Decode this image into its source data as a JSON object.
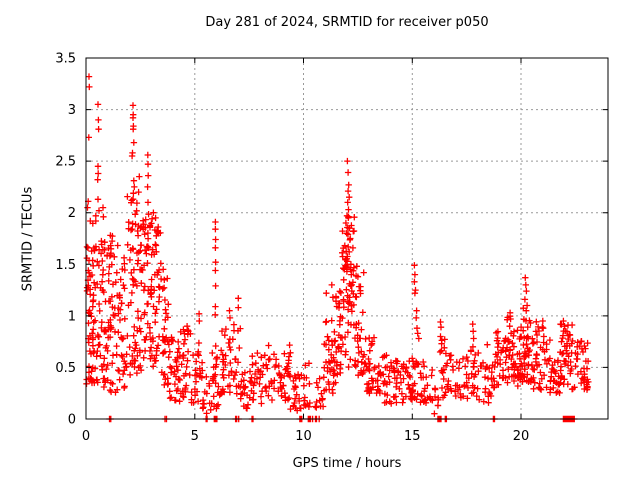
{
  "chart_data": {
    "type": "scatter",
    "title": "Day 281 of 2024, SRMTID for receiver p050",
    "xlabel": "GPS time / hours",
    "ylabel": "SRMTID / TECUs",
    "xlim": [
      0,
      24
    ],
    "ylim": [
      0,
      3.5
    ],
    "xticks": [
      0,
      5,
      10,
      15,
      20
    ],
    "yticks": [
      0,
      0.5,
      1,
      1.5,
      2,
      2.5,
      3,
      3.5
    ],
    "grid": true,
    "legend": "none",
    "marker": {
      "shape": "plus",
      "color": "#ff0000",
      "size": 7
    },
    "axis_color": "#000000",
    "grid_color": "#999999",
    "series": [
      {
        "name": "SRMTID",
        "feature_points": [
          [
            0.14,
            3.32
          ],
          [
            0.15,
            3.22
          ],
          [
            0.13,
            2.73
          ],
          [
            0.1,
            2.11
          ],
          [
            0.07,
            2.05
          ],
          [
            0.2,
            1.92
          ],
          [
            0.55,
            3.05
          ],
          [
            0.57,
            2.9
          ],
          [
            0.58,
            2.81
          ],
          [
            0.55,
            2.45
          ],
          [
            0.56,
            2.38
          ],
          [
            0.54,
            2.32
          ],
          [
            0.55,
            2.13
          ],
          [
            0.6,
            2.02
          ],
          [
            0.45,
            1.97
          ],
          [
            0.78,
            2.05
          ],
          [
            0.8,
            1.96
          ],
          [
            1.12,
            1.78
          ],
          [
            1.15,
            1.65
          ],
          [
            1.1,
            1.58
          ],
          [
            2.16,
            3.04
          ],
          [
            2.17,
            2.95
          ],
          [
            2.16,
            2.92
          ],
          [
            2.18,
            2.84
          ],
          [
            2.17,
            2.81
          ],
          [
            2.2,
            2.68
          ],
          [
            2.14,
            2.58
          ],
          [
            2.12,
            2.55
          ],
          [
            2.2,
            2.31
          ],
          [
            2.22,
            2.25
          ],
          [
            2.18,
            2.19
          ],
          [
            2.1,
            2.12
          ],
          [
            2.45,
            2.35
          ],
          [
            2.42,
            2.2
          ],
          [
            2.84,
            2.56
          ],
          [
            2.85,
            2.47
          ],
          [
            2.86,
            2.36
          ],
          [
            2.83,
            2.25
          ],
          [
            2.85,
            2.1
          ],
          [
            3.1,
            2.0
          ],
          [
            3.2,
            1.95
          ],
          [
            3.55,
            1.45
          ],
          [
            3.6,
            1.35
          ],
          [
            4.65,
            0.9
          ],
          [
            4.68,
            0.85
          ],
          [
            5.2,
            1.02
          ],
          [
            5.21,
            0.95
          ],
          [
            5.95,
            1.91
          ],
          [
            5.95,
            1.84
          ],
          [
            5.96,
            1.74
          ],
          [
            5.95,
            1.66
          ],
          [
            5.96,
            1.52
          ],
          [
            5.95,
            1.44
          ],
          [
            5.96,
            1.29
          ],
          [
            5.95,
            1.09
          ],
          [
            5.94,
            1.01
          ],
          [
            6.6,
            1.05
          ],
          [
            6.62,
            0.98
          ],
          [
            7.0,
            1.17
          ],
          [
            7.0,
            1.08
          ],
          [
            11.05,
            1.22
          ],
          [
            11.3,
            1.3
          ],
          [
            11.35,
            1.18
          ],
          [
            12.02,
            2.5
          ],
          [
            12.05,
            2.39
          ],
          [
            12.08,
            2.27
          ],
          [
            12.05,
            2.21
          ],
          [
            12.1,
            2.15
          ],
          [
            12.03,
            2.1
          ],
          [
            12.07,
            2.03
          ],
          [
            12.0,
            1.97
          ],
          [
            11.95,
            1.9
          ],
          [
            12.12,
            1.85
          ],
          [
            11.98,
            1.8
          ],
          [
            12.15,
            1.75
          ],
          [
            11.9,
            1.68
          ],
          [
            12.1,
            1.62
          ],
          [
            11.93,
            1.55
          ],
          [
            12.18,
            1.5
          ],
          [
            11.88,
            1.45
          ],
          [
            12.2,
            1.4
          ],
          [
            11.85,
            1.35
          ],
          [
            12.22,
            1.3
          ],
          [
            12.45,
            1.48
          ],
          [
            12.5,
            1.38
          ],
          [
            15.1,
            1.49
          ],
          [
            15.12,
            1.4
          ],
          [
            15.1,
            1.33
          ],
          [
            15.15,
            1.25
          ],
          [
            15.12,
            1.22
          ],
          [
            15.2,
            1.05
          ],
          [
            15.18,
            0.98
          ],
          [
            15.22,
            0.88
          ],
          [
            15.25,
            0.83
          ],
          [
            15.3,
            0.78
          ],
          [
            16.3,
            0.94
          ],
          [
            16.32,
            0.89
          ],
          [
            16.3,
            0.8
          ],
          [
            16.35,
            0.73
          ],
          [
            16.28,
            0.65
          ],
          [
            17.78,
            0.92
          ],
          [
            17.8,
            0.85
          ],
          [
            17.82,
            0.78
          ],
          [
            17.79,
            0.7
          ],
          [
            18.45,
            0.72
          ],
          [
            19.5,
            1.03
          ],
          [
            19.52,
            0.97
          ],
          [
            19.48,
            0.9
          ],
          [
            20.2,
            1.37
          ],
          [
            20.22,
            1.3
          ],
          [
            20.25,
            1.24
          ],
          [
            20.18,
            1.16
          ],
          [
            20.28,
            1.1
          ],
          [
            20.24,
            1.05
          ],
          [
            21.0,
            0.95
          ],
          [
            21.02,
            0.88
          ],
          [
            21.05,
            0.8
          ],
          [
            21.95,
            0.95
          ],
          [
            22.0,
            0.9
          ],
          [
            22.8,
            0.68
          ],
          [
            22.85,
            0.65
          ]
        ],
        "zero_time_points": [
          1.08,
          1.14,
          3.63,
          3.7,
          5.52,
          5.57,
          5.9,
          5.94,
          5.98,
          6.02,
          6.88,
          6.93,
          7.02,
          7.63,
          7.68,
          9.83,
          9.87,
          9.92,
          10.22,
          10.27,
          10.32,
          10.42,
          10.55,
          10.6,
          10.72,
          16.18,
          16.22,
          16.27,
          16.32,
          16.52,
          16.57,
          18.73,
          18.78,
          21.95,
          22.0,
          22.05,
          22.1,
          22.15,
          22.2,
          22.25,
          22.3,
          22.35,
          22.4,
          22.45
        ],
        "density_bands": [
          [
            0.02,
            0.3,
            38,
            0.3,
            1.7,
            1.4
          ],
          [
            0.3,
            0.7,
            45,
            0.35,
            1.95,
            1.2
          ],
          [
            0.7,
            1.05,
            40,
            0.3,
            2.0,
            1.3
          ],
          [
            1.05,
            1.5,
            42,
            0.25,
            1.8,
            1.3
          ],
          [
            1.5,
            1.9,
            32,
            0.3,
            1.6,
            1.3
          ],
          [
            1.9,
            2.35,
            45,
            0.4,
            2.25,
            1.2
          ],
          [
            2.35,
            2.6,
            26,
            0.4,
            1.9,
            1.2
          ],
          [
            2.6,
            3.0,
            42,
            0.5,
            2.0,
            1.0
          ],
          [
            3.0,
            3.45,
            45,
            0.5,
            1.95,
            1.0
          ],
          [
            3.45,
            3.8,
            28,
            0.3,
            1.45,
            1.2
          ],
          [
            3.8,
            4.3,
            32,
            0.18,
            0.8,
            1.3
          ],
          [
            4.3,
            4.9,
            34,
            0.15,
            0.88,
            1.3
          ],
          [
            4.9,
            5.35,
            22,
            0.15,
            0.75,
            1.3
          ],
          [
            5.35,
            5.78,
            14,
            0.05,
            0.42,
            1.2
          ],
          [
            5.78,
            6.2,
            24,
            0.1,
            0.72,
            1.2
          ],
          [
            6.2,
            7.1,
            46,
            0.22,
            0.92,
            1.2
          ],
          [
            7.1,
            7.5,
            18,
            0.1,
            0.5,
            1.2
          ],
          [
            7.5,
            8.3,
            36,
            0.15,
            0.66,
            1.2
          ],
          [
            8.3,
            9.4,
            48,
            0.18,
            0.72,
            1.2
          ],
          [
            9.4,
            10.0,
            22,
            0.08,
            0.45,
            1.2
          ],
          [
            10.0,
            10.45,
            13,
            0.06,
            0.55,
            1.2
          ],
          [
            10.45,
            10.92,
            13,
            0.1,
            0.45,
            1.2
          ],
          [
            10.92,
            11.45,
            36,
            0.25,
            0.98,
            1.2
          ],
          [
            11.45,
            11.78,
            28,
            0.35,
            1.25,
            1.1
          ],
          [
            11.78,
            12.35,
            60,
            0.5,
            2.0,
            0.9
          ],
          [
            12.35,
            12.8,
            34,
            0.4,
            1.5,
            1.2
          ],
          [
            12.8,
            13.3,
            30,
            0.25,
            0.8,
            1.3
          ],
          [
            13.3,
            14.6,
            62,
            0.15,
            0.62,
            1.2
          ],
          [
            14.6,
            15.05,
            24,
            0.18,
            0.6,
            1.2
          ],
          [
            15.05,
            16.0,
            34,
            0.15,
            0.56,
            1.2
          ],
          [
            16.0,
            16.25,
            8,
            0.05,
            0.3,
            1.2
          ],
          [
            16.25,
            16.55,
            14,
            0.2,
            0.8,
            1.1
          ],
          [
            16.55,
            17.65,
            36,
            0.18,
            0.62,
            1.2
          ],
          [
            17.65,
            18.05,
            18,
            0.2,
            0.72,
            1.1
          ],
          [
            18.05,
            18.8,
            28,
            0.15,
            0.55,
            1.2
          ],
          [
            18.8,
            19.35,
            30,
            0.25,
            0.85,
            1.2
          ],
          [
            19.35,
            19.75,
            30,
            0.35,
            1.0,
            1.1
          ],
          [
            19.75,
            20.05,
            24,
            0.3,
            0.9,
            1.2
          ],
          [
            20.05,
            20.5,
            40,
            0.35,
            1.1,
            1.2
          ],
          [
            20.5,
            21.2,
            40,
            0.28,
            0.95,
            1.2
          ],
          [
            21.2,
            21.78,
            28,
            0.25,
            0.8,
            1.2
          ],
          [
            21.78,
            22.35,
            46,
            0.32,
            0.92,
            1.1
          ],
          [
            22.35,
            23.1,
            40,
            0.28,
            0.82,
            1.2
          ]
        ]
      }
    ]
  }
}
